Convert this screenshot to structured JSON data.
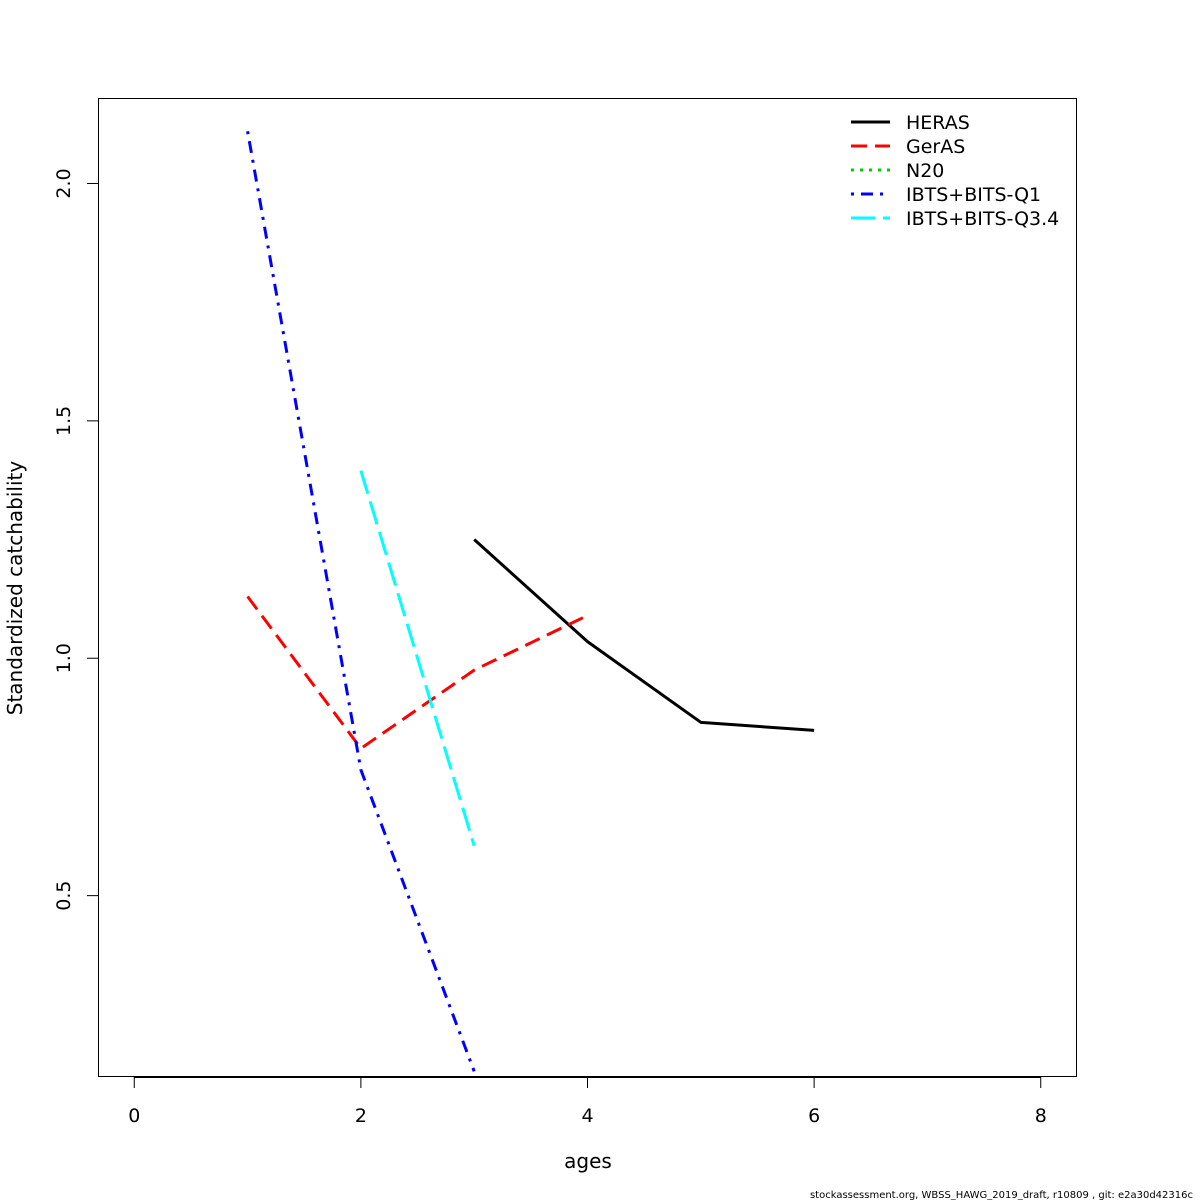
{
  "chart_data": {
    "type": "line",
    "title": "",
    "xlabel": "ages",
    "ylabel": "Standardized catchability",
    "xlim": [
      -0.32,
      8.32
    ],
    "ylim": [
      0.118,
      2.18
    ],
    "x_ticks": [
      0,
      2,
      4,
      6,
      8
    ],
    "y_ticks": [
      0.5,
      1.0,
      1.5,
      2.0
    ],
    "x_tick_labels": [
      "0",
      "2",
      "4",
      "6",
      "8"
    ],
    "y_tick_labels": [
      "0.5",
      "1.0",
      "1.5",
      "2.0"
    ],
    "grid": false,
    "legend_position": "top-right",
    "series": [
      {
        "name": "HERAS",
        "color": "#000000",
        "dash": "solid",
        "x": [
          3,
          4,
          5,
          6
        ],
        "y": [
          1.25,
          1.035,
          0.865,
          0.848
        ]
      },
      {
        "name": "GerAS",
        "color": "#ff0000",
        "dash": "dashed",
        "x": [
          1,
          2,
          3,
          4
        ],
        "y": [
          1.13,
          0.81,
          0.975,
          1.09
        ]
      },
      {
        "name": "N20",
        "color": "#00cd00",
        "dash": "dotted",
        "x": [],
        "y": []
      },
      {
        "name": "IBTS+BITS-Q1",
        "color": "#0000ff",
        "dash": "dotdash",
        "x": [
          1,
          2,
          3
        ],
        "y": [
          2.11,
          0.765,
          0.13
        ]
      },
      {
        "name": "IBTS+BITS-Q3.4",
        "color": "#00ffff",
        "dash": "longdash",
        "x": [
          2,
          3
        ],
        "y": [
          1.395,
          0.605
        ]
      }
    ]
  },
  "footer": {
    "text": "stockassessment.org, WBSS_HAWG_2019_draft, r10809 , git: e2a30d42316c"
  }
}
